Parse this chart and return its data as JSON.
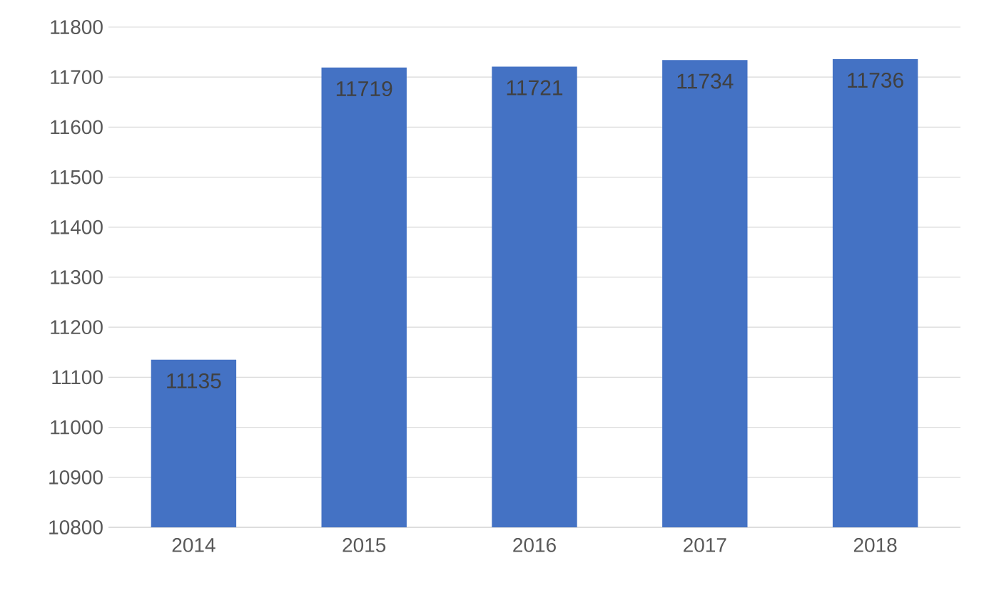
{
  "chart_data": {
    "type": "bar",
    "categories": [
      "2014",
      "2015",
      "2016",
      "2017",
      "2018"
    ],
    "values": [
      11135,
      11719,
      11721,
      11734,
      11736
    ],
    "color": "#4472c4",
    "ylim": [
      10800,
      11800
    ],
    "yticks": [
      10800,
      10900,
      11000,
      11100,
      11200,
      11300,
      11400,
      11500,
      11600,
      11700,
      11800
    ],
    "grid": "y",
    "data_labels": true
  }
}
